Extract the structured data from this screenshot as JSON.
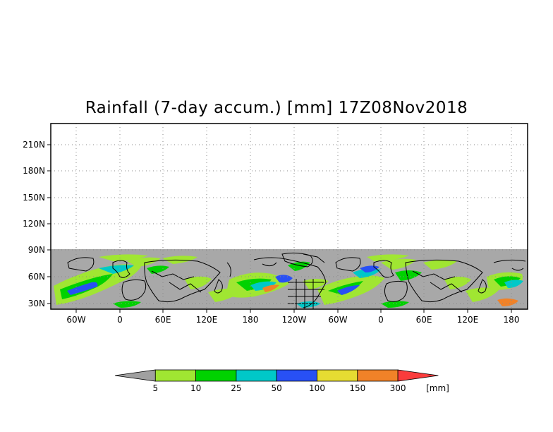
{
  "title": "Rainfall (7-day accum.) [mm] 17Z08Nov2018",
  "map": {
    "x_ticks": [
      "60W",
      "0",
      "60E",
      "120E",
      "180",
      "120W",
      "60W",
      "0",
      "60E",
      "120E",
      "180"
    ],
    "y_ticks": [
      "30N",
      "60N",
      "90N",
      "120N",
      "150N",
      "180N",
      "210N"
    ],
    "data_region": "approx. 20N–90N",
    "no_data_color": "#a8a8a8"
  },
  "colorbar": {
    "levels": [
      "5",
      "10",
      "25",
      "50",
      "100",
      "150",
      "300"
    ],
    "units": "[mm]",
    "colors": [
      "#a0a0a0",
      "#a0e632",
      "#00d200",
      "#00c8c8",
      "#2850f5",
      "#e6dc32",
      "#f08228",
      "#fa3c3c"
    ]
  }
}
